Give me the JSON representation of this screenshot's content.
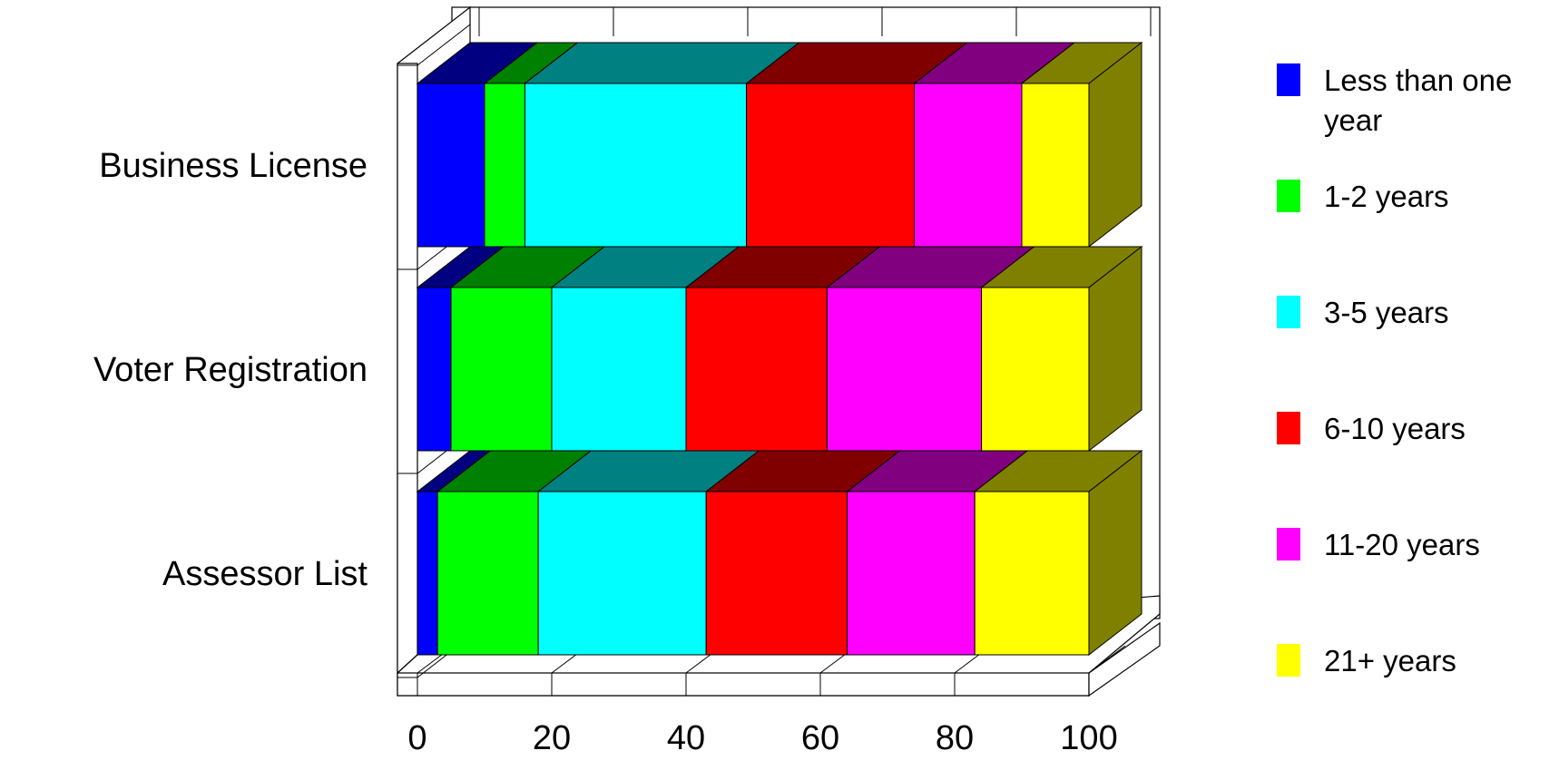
{
  "chart_data": {
    "type": "bar",
    "orientation": "horizontal",
    "stacked": true,
    "percent_stacked": true,
    "three_d": true,
    "categories": [
      "Business License",
      "Voter Registration",
      "Assessor List"
    ],
    "series": [
      {
        "name": "Less than one year",
        "color": "#0000FF",
        "values": [
          10,
          5,
          3
        ]
      },
      {
        "name": "1-2 years",
        "color": "#00FF00",
        "values": [
          6,
          15,
          15
        ]
      },
      {
        "name": "3-5 years",
        "color": "#00FFFF",
        "values": [
          33,
          20,
          25
        ]
      },
      {
        "name": "6-10 years",
        "color": "#FF0000",
        "values": [
          25,
          21,
          21
        ]
      },
      {
        "name": "11-20 years",
        "color": "#FF00FF",
        "values": [
          16,
          23,
          19
        ]
      },
      {
        "name": "21+ years",
        "color": "#FFFF00",
        "values": [
          10,
          16,
          17
        ]
      }
    ],
    "xlim": [
      0,
      100
    ],
    "x_ticks": [
      "0",
      "20",
      "40",
      "60",
      "80",
      "100"
    ],
    "legend_position": "right",
    "grid": true
  }
}
